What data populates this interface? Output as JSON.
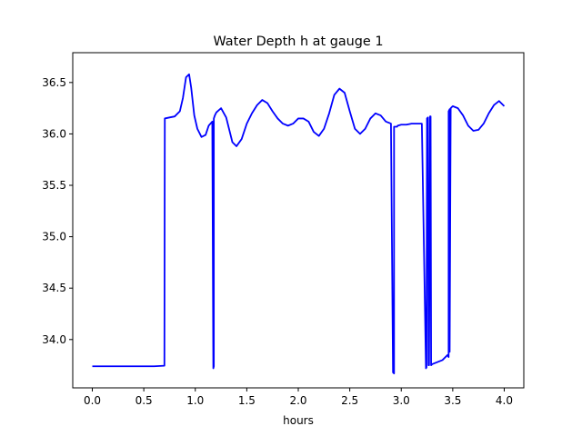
{
  "chart_data": {
    "type": "line",
    "title": "Water Depth h at gauge 1",
    "xlabel": "hours",
    "ylabel": "",
    "xlim": [
      -0.19,
      4.19
    ],
    "ylim": [
      33.53,
      36.79
    ],
    "xticks": [
      0.0,
      0.5,
      1.0,
      1.5,
      2.0,
      2.5,
      3.0,
      3.5,
      4.0
    ],
    "xtick_labels": [
      "0.0",
      "0.5",
      "1.0",
      "1.5",
      "2.0",
      "2.5",
      "3.0",
      "3.5",
      "4.0"
    ],
    "yticks": [
      34.0,
      34.5,
      35.0,
      35.5,
      36.0,
      36.5
    ],
    "ytick_labels": [
      "34.0",
      "34.5",
      "35.0",
      "35.5",
      "36.0",
      "36.5"
    ],
    "grid": false,
    "series": [
      {
        "color": "#0000ff",
        "x": [
          0.0,
          0.3,
          0.6,
          0.7,
          0.704,
          0.75,
          0.8,
          0.85,
          0.88,
          0.91,
          0.94,
          0.96,
          0.99,
          1.02,
          1.06,
          1.1,
          1.13,
          1.165,
          1.175,
          1.18,
          1.18,
          1.19,
          1.2,
          1.205,
          1.25,
          1.3,
          1.36,
          1.4,
          1.45,
          1.5,
          1.55,
          1.6,
          1.65,
          1.7,
          1.75,
          1.8,
          1.85,
          1.9,
          1.95,
          2.0,
          2.05,
          2.1,
          2.15,
          2.2,
          2.25,
          2.3,
          2.35,
          2.4,
          2.45,
          2.5,
          2.55,
          2.6,
          2.65,
          2.7,
          2.75,
          2.8,
          2.85,
          2.9,
          2.92,
          2.93,
          2.93,
          2.96,
          2.965,
          3.0,
          3.05,
          3.1,
          3.15,
          3.2,
          3.24,
          3.245,
          3.25,
          3.26,
          3.265,
          3.27,
          3.28,
          3.285,
          3.29,
          3.3,
          3.35,
          3.4,
          3.45,
          3.46,
          3.46,
          3.47,
          3.47,
          3.48,
          3.5,
          3.55,
          3.6,
          3.65,
          3.7,
          3.75,
          3.8,
          3.85,
          3.9,
          3.95,
          4.0
        ],
        "y": [
          33.74,
          33.74,
          33.74,
          33.745,
          36.15,
          36.16,
          36.17,
          36.22,
          36.35,
          36.55,
          36.58,
          36.45,
          36.18,
          36.05,
          35.97,
          35.99,
          36.08,
          36.12,
          33.72,
          33.74,
          36.15,
          36.18,
          36.2,
          36.21,
          36.25,
          36.16,
          35.92,
          35.88,
          35.95,
          36.1,
          36.2,
          36.28,
          36.33,
          36.3,
          36.22,
          36.15,
          36.1,
          36.08,
          36.1,
          36.15,
          36.15,
          36.12,
          36.02,
          35.98,
          36.05,
          36.2,
          36.38,
          36.44,
          36.4,
          36.22,
          36.05,
          36.0,
          36.05,
          36.15,
          36.2,
          36.18,
          36.12,
          36.1,
          33.68,
          33.67,
          36.07,
          36.07,
          36.08,
          36.09,
          36.09,
          36.1,
          36.1,
          36.1,
          33.72,
          33.73,
          36.15,
          36.16,
          33.75,
          33.75,
          36.17,
          36.17,
          33.75,
          33.76,
          33.78,
          33.8,
          33.85,
          33.83,
          36.22,
          36.24,
          33.88,
          36.25,
          36.27,
          36.25,
          36.18,
          36.08,
          36.03,
          36.04,
          36.1,
          36.2,
          36.28,
          36.32,
          36.27
        ]
      }
    ]
  }
}
